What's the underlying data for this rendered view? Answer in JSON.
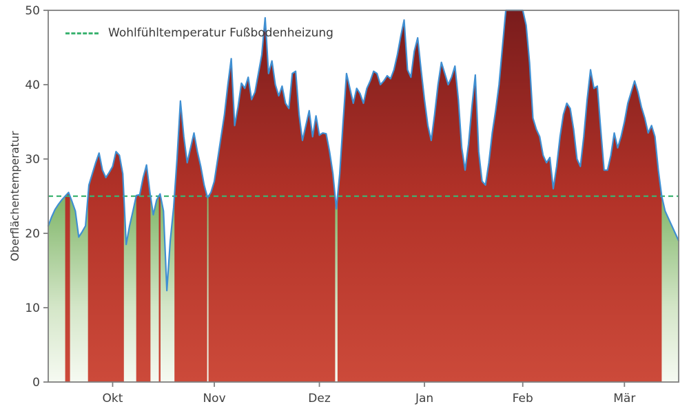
{
  "chart_data": {
    "type": "area",
    "title": "",
    "xlabel": "",
    "ylabel": "Oberflächentemperatur",
    "ylim": [
      0,
      50
    ],
    "yticks": [
      0,
      10,
      20,
      30,
      40,
      50
    ],
    "x_tick_labels": [
      "Okt",
      "Nov",
      "Dez",
      "Jan",
      "Feb",
      "Mär"
    ],
    "x_tick_indices": [
      19,
      49,
      80,
      111,
      140,
      170
    ],
    "grid": false,
    "legend_position": "upper left",
    "threshold": {
      "value": 25,
      "label": "Wohlfühltemperatur Fußbodenheizung",
      "color": "#3cb371",
      "style": "dashed"
    },
    "colors": {
      "line": "#3f8fd2",
      "area_above_top": "#791c1c",
      "area_above_mid": "#b23228",
      "area_above_bottom": "#cc4a3a",
      "area_below_top": "#7eb567",
      "area_below_mid": "#d4e6c8",
      "area_below_bottom": "#f6faf2",
      "spine": "#7f7f7f"
    },
    "series": [
      {
        "name": "Oberflächentemperatur",
        "values": [
          21.0,
          22.2,
          23.2,
          23.9,
          24.5,
          25.0,
          25.5,
          24.3,
          23.0,
          19.5,
          20.2,
          21.0,
          26.5,
          28.0,
          29.5,
          30.8,
          28.5,
          27.5,
          28.2,
          29.0,
          31.0,
          30.5,
          28.0,
          18.5,
          21.0,
          23.0,
          25.1,
          25.2,
          27.5,
          29.2,
          25.5,
          22.5,
          24.5,
          25.3,
          23.0,
          12.3,
          19.0,
          23.5,
          30.0,
          37.8,
          33.0,
          29.5,
          31.5,
          33.5,
          31.0,
          29.0,
          26.5,
          24.8,
          25.5,
          27.0,
          30.0,
          33.0,
          36.0,
          40.0,
          43.5,
          34.5,
          37.0,
          40.2,
          39.5,
          41.0,
          38.0,
          39.0,
          41.5,
          44.0,
          49.0,
          41.5,
          43.2,
          40.0,
          38.5,
          39.8,
          37.5,
          36.8,
          41.5,
          41.8,
          36.0,
          32.5,
          34.5,
          36.5,
          33.0,
          35.8,
          33.2,
          33.5,
          33.4,
          31.0,
          28.0,
          23.3,
          28.0,
          35.0,
          41.5,
          39.5,
          37.5,
          39.5,
          38.8,
          37.5,
          39.5,
          40.5,
          41.8,
          41.5,
          40.0,
          40.5,
          41.2,
          40.8,
          42.0,
          44.0,
          46.5,
          48.7,
          42.0,
          41.0,
          44.5,
          46.3,
          42.0,
          38.0,
          34.5,
          32.5,
          36.0,
          40.0,
          43.0,
          41.5,
          40.0,
          41.0,
          42.5,
          38.0,
          31.5,
          28.5,
          32.0,
          37.0,
          41.3,
          31.0,
          27.0,
          26.5,
          29.5,
          33.5,
          36.5,
          40.0,
          45.0,
          51.0,
          52.0,
          52.5,
          52.0,
          51.5,
          51.0,
          48.0,
          43.0,
          35.5,
          34.0,
          33.0,
          30.5,
          29.5,
          30.2,
          26.0,
          29.0,
          33.0,
          36.0,
          37.5,
          36.8,
          34.0,
          30.0,
          29.0,
          33.0,
          38.0,
          42.0,
          39.5,
          39.8,
          34.0,
          28.5,
          28.5,
          30.5,
          33.5,
          31.5,
          33.0,
          35.0,
          37.5,
          39.0,
          40.5,
          39.0,
          37.0,
          35.5,
          33.5,
          34.5,
          33.0,
          28.5,
          25.0,
          23.0,
          22.0,
          21.0,
          20.0,
          19.0
        ]
      }
    ]
  }
}
